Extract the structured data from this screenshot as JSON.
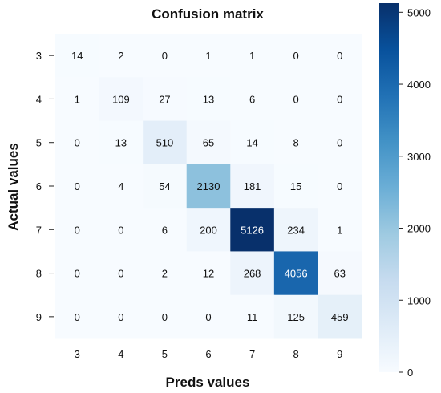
{
  "chart_data": {
    "type": "heatmap",
    "title": "Confusion matrix",
    "xlabel": "Preds values",
    "ylabel": "Actual values",
    "x_categories": [
      "3",
      "4",
      "5",
      "6",
      "7",
      "8",
      "9"
    ],
    "y_categories": [
      "3",
      "4",
      "5",
      "6",
      "7",
      "8",
      "9"
    ],
    "values": [
      [
        14,
        2,
        0,
        1,
        1,
        0,
        0
      ],
      [
        1,
        109,
        27,
        13,
        6,
        0,
        0
      ],
      [
        0,
        13,
        510,
        65,
        14,
        8,
        0
      ],
      [
        0,
        4,
        54,
        2130,
        181,
        15,
        0
      ],
      [
        0,
        0,
        6,
        200,
        5126,
        234,
        1
      ],
      [
        0,
        0,
        2,
        12,
        268,
        4056,
        63
      ],
      [
        0,
        0,
        0,
        0,
        11,
        125,
        459
      ]
    ],
    "colorbar": {
      "range": [
        0,
        5126
      ],
      "ticks": [
        0,
        1000,
        2000,
        3000,
        4000,
        5000
      ],
      "colormap": "Blues",
      "color_low": "#f7fbff",
      "color_high": "#08306b"
    }
  }
}
